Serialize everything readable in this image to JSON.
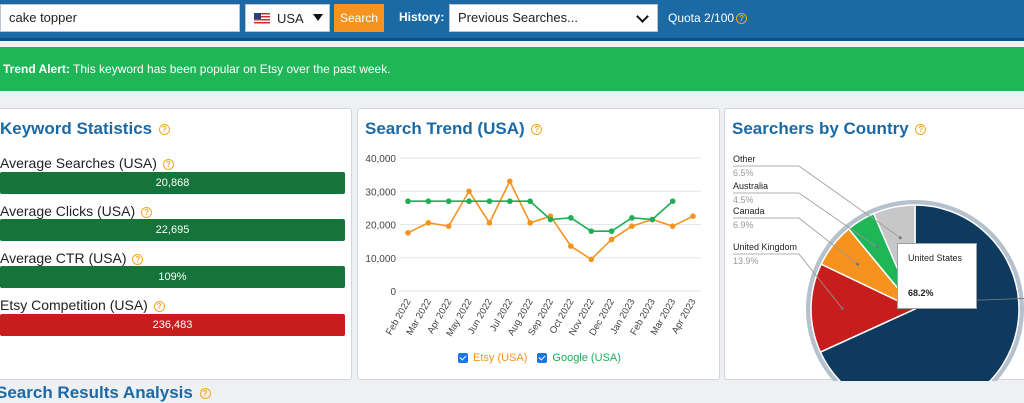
{
  "topbar": {
    "keyword_value": "cake topper",
    "country": "USA",
    "search_label": "Search",
    "history_label": "History:",
    "history_selected": "Previous Searches...",
    "quota": "Quota 2/100"
  },
  "alert": {
    "prefix": "Trend Alert:",
    "message": "This keyword has been popular on Etsy over the past week."
  },
  "keyword_stats": {
    "title": "Keyword Statistics",
    "items": [
      {
        "label": "Average Searches (USA)",
        "value": "20,868",
        "color": "#14743a"
      },
      {
        "label": "Average Clicks (USA)",
        "value": "22,695",
        "color": "#14743a"
      },
      {
        "label": "Average CTR (USA)",
        "value": "109%",
        "color": "#14743a"
      },
      {
        "label": "Etsy Competition (USA)",
        "value": "236,483",
        "color": "#c81d1d"
      }
    ]
  },
  "search_trend": {
    "title": "Search Trend (USA)",
    "legend_etsy": "Etsy (USA)",
    "legend_google": "Google (USA)"
  },
  "country_panel": {
    "title": "Searchers by Country",
    "tooltip_country": "United States",
    "tooltip_pct": "68.2%"
  },
  "bottom": {
    "title": "Search Results Analysis"
  },
  "icons": [
    "help-icon",
    "chevron-down-icon",
    "checkbox-icon",
    "us-flag-icon"
  ],
  "colors": {
    "brand_blue": "#1b6aa5",
    "accent_orange": "#f5931e",
    "alert_green": "#1fb657",
    "stat_green": "#14743a",
    "stat_red": "#c81d1d"
  },
  "chart_data": [
    {
      "type": "line",
      "x": [
        "Feb 2022",
        "Mar 2022",
        "Apr 2022",
        "May 2022",
        "Jun 2022",
        "Jul 2022",
        "Aug 2022",
        "Sep 2022",
        "Oct 2022",
        "Nov 2022",
        "Dec 2022",
        "Jan 2023",
        "Feb 2023",
        "Mar 2023",
        "Apr 2023"
      ],
      "ylim": [
        0,
        40000
      ],
      "yticks": [
        "0",
        "10,000",
        "20,000",
        "30,000",
        "40,000"
      ],
      "grid": true,
      "legend": "bottom",
      "series": [
        {
          "name": "Etsy (USA)",
          "color": "#f5931e",
          "values": [
            17500,
            20500,
            19500,
            30000,
            20500,
            33000,
            20500,
            22500,
            13500,
            9500,
            15500,
            19500,
            21500,
            19500,
            22500
          ]
        },
        {
          "name": "Google (USA)",
          "color": "#1fae57",
          "values": [
            27000,
            27000,
            27000,
            27000,
            27000,
            27000,
            27000,
            21500,
            22000,
            18000,
            18000,
            22000,
            21500,
            27000,
            null
          ]
        }
      ]
    },
    {
      "type": "pie",
      "slices": [
        {
          "label": "United States",
          "value": 68.2,
          "pct": "68.2%",
          "color": "#0f3a5f"
        },
        {
          "label": "United Kingdom",
          "value": 13.9,
          "pct": "13.9%",
          "color": "#c81d1d"
        },
        {
          "label": "Canada",
          "value": 6.9,
          "pct": "6.9%",
          "color": "#f5931e"
        },
        {
          "label": "Australia",
          "value": 4.5,
          "pct": "4.5%",
          "color": "#1fb657"
        },
        {
          "label": "Other",
          "value": 6.5,
          "pct": "6.5%",
          "color": "#c7c7c7"
        }
      ]
    }
  ]
}
